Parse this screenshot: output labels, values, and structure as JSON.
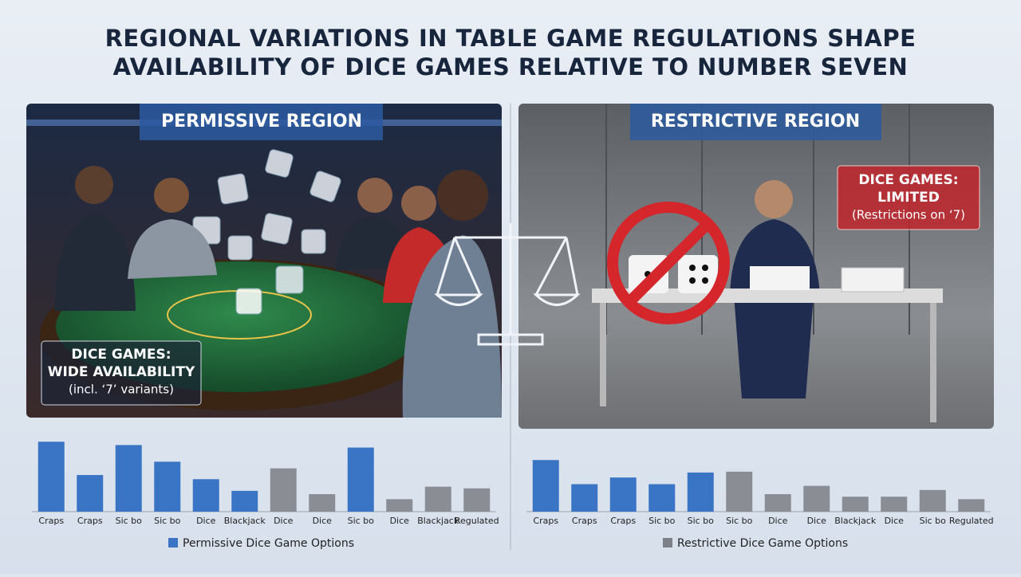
{
  "title": [
    "REGIONAL VARIATIONS IN TABLE GAME REGULATIONS SHAPE",
    "AVAILABILITY OF DICE GAMES RELATIVE TO NUMBER SEVEN"
  ],
  "panels": [
    {
      "label": "PERMISSIVE REGION",
      "note": [
        "DICE GAMES:",
        "WIDE AVAILABILITY",
        "(incl. ‘7’ variants)"
      ]
    },
    {
      "label": "RESTRICTIVE REGION",
      "note": [
        "DICE GAMES:",
        "LIMITED",
        "(Restrictions on ‘7)"
      ]
    }
  ],
  "chart_data": [
    {
      "type": "bar",
      "categories": [
        "Craps",
        "Craps",
        "Sic bo",
        "Sic bo",
        "Dice",
        "Blackjack",
        "Dice",
        "Dice",
        "Sic bo",
        "Dice",
        "Blackjack",
        "Regulated"
      ],
      "values": [
        84,
        44,
        80,
        60,
        39,
        25,
        52,
        21,
        77,
        15,
        30,
        28
      ],
      "colors": [
        "#3a74c4",
        "#3a74c4",
        "#3a74c4",
        "#3a74c4",
        "#3a74c4",
        "#3a74c4",
        "#8a8e94",
        "#8a8e94",
        "#3a74c4",
        "#8a8e94",
        "#8a8e94",
        "#8a8e94"
      ],
      "ylim": [
        0,
        90
      ],
      "legend": {
        "name": "Permissive Dice Game Options",
        "color": "#3a74c4"
      }
    },
    {
      "type": "bar",
      "categories": [
        "Craps",
        "Craps",
        "Craps",
        "Sic bo",
        "Sic bo",
        "Sic bo",
        "Dice",
        "Dice",
        "Blackjack",
        "Dice",
        "Sic bo",
        "Regulated"
      ],
      "values": [
        62,
        33,
        41,
        33,
        47,
        48,
        21,
        31,
        18,
        18,
        26,
        15
      ],
      "colors": [
        "#3a74c4",
        "#3a74c4",
        "#3a74c4",
        "#3a74c4",
        "#3a74c4",
        "#8a8e94",
        "#8a8e94",
        "#8a8e94",
        "#8a8e94",
        "#8a8e94",
        "#8a8e94",
        "#8a8e94"
      ],
      "ylim": [
        0,
        90
      ],
      "legend": {
        "name": "Restrictive Dice Game Options",
        "color": "#7d8187"
      }
    }
  ]
}
